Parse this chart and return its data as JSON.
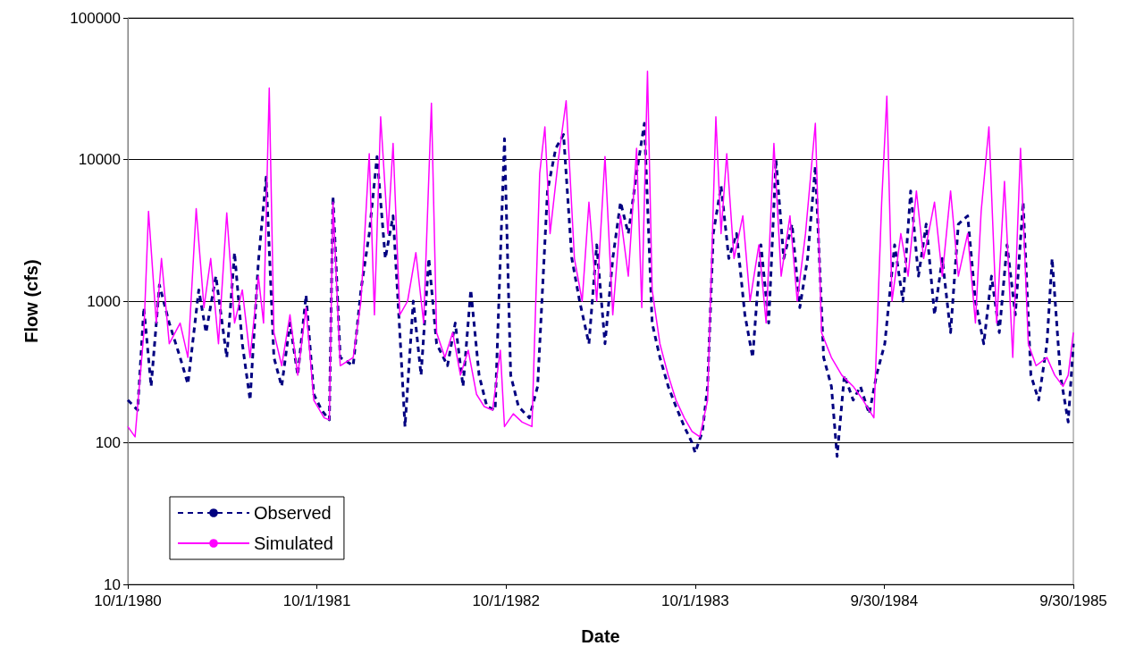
{
  "chart_data": {
    "type": "line",
    "xlabel": "Date",
    "ylabel": "Flow (cfs)",
    "log": "y",
    "grid": "y",
    "legend": "bottom left",
    "marker": "none",
    "xlim": [
      "1980-10-01",
      "1985-09-30"
    ],
    "xticks": [
      {
        "value": "1980-10-01",
        "label": "10/1/1980"
      },
      {
        "value": "1981-10-01",
        "label": "10/1/1981"
      },
      {
        "value": "1982-10-01",
        "label": "10/1/1982"
      },
      {
        "value": "1983-10-01",
        "label": "10/1/1983"
      },
      {
        "value": "1984-09-30",
        "label": "9/30/1984"
      },
      {
        "value": "1985-09-30",
        "label": "9/30/1985"
      }
    ],
    "ylim": [
      10,
      100000
    ],
    "yticks": [
      10,
      100,
      1000,
      10000,
      100000
    ],
    "series": [
      {
        "name": "Observed",
        "color": "#000080",
        "line_style": "dashed",
        "x": [
          "1980-10-01",
          "1980-10-20",
          "1980-11-01",
          "1980-11-15",
          "1980-12-01",
          "1980-12-20",
          "1981-01-10",
          "1981-01-25",
          "1981-02-15",
          "1981-03-01",
          "1981-03-20",
          "1981-04-10",
          "1981-04-25",
          "1981-05-10",
          "1981-05-25",
          "1981-06-10",
          "1981-06-25",
          "1981-07-10",
          "1981-07-25",
          "1981-08-10",
          "1981-08-25",
          "1981-09-10",
          "1981-09-25",
          "1981-10-10",
          "1981-10-25",
          "1981-11-01",
          "1981-11-15",
          "1981-12-10",
          "1981-12-25",
          "1982-01-10",
          "1982-01-25",
          "1982-02-10",
          "1982-02-25",
          "1982-03-10",
          "1982-03-20",
          "1982-04-05",
          "1982-04-20",
          "1982-05-05",
          "1982-05-20",
          "1982-06-10",
          "1982-06-25",
          "1982-07-10",
          "1982-07-25",
          "1982-08-10",
          "1982-08-25",
          "1982-09-10",
          "1982-09-20",
          "1982-09-28",
          "1982-10-10",
          "1982-10-25",
          "1982-11-15",
          "1982-12-01",
          "1982-12-20",
          "1983-01-05",
          "1983-01-20",
          "1983-02-05",
          "1983-02-20",
          "1983-03-10",
          "1983-03-25",
          "1983-04-10",
          "1983-04-25",
          "1983-05-10",
          "1983-05-25",
          "1983-06-10",
          "1983-06-25",
          "1983-07-10",
          "1983-07-25",
          "1983-08-10",
          "1983-08-25",
          "1983-09-10",
          "1983-09-25",
          "1983-10-01",
          "1983-10-15",
          "1983-10-25",
          "1983-11-05",
          "1983-11-20",
          "1983-12-05",
          "1983-12-20",
          "1984-01-05",
          "1984-01-20",
          "1984-02-05",
          "1984-02-20",
          "1984-03-05",
          "1984-03-20",
          "1984-04-05",
          "1984-04-20",
          "1984-05-05",
          "1984-05-20",
          "1984-06-05",
          "1984-06-20",
          "1984-07-01",
          "1984-07-15",
          "1984-08-01",
          "1984-08-15",
          "1984-09-01",
          "1984-09-15",
          "1984-10-01",
          "1984-10-20",
          "1984-11-05",
          "1984-11-20",
          "1984-12-05",
          "1984-12-20",
          "1985-01-05",
          "1985-01-20",
          "1985-02-05",
          "1985-02-20",
          "1985-03-10",
          "1985-03-25",
          "1985-04-10",
          "1985-04-25",
          "1985-05-10",
          "1985-05-25",
          "1985-06-10",
          "1985-06-25",
          "1985-07-10",
          "1985-07-25",
          "1985-08-10",
          "1985-08-20",
          "1985-09-05",
          "1985-09-20",
          "1985-09-30"
        ],
        "values": [
          200,
          170,
          900,
          250,
          1300,
          700,
          400,
          260,
          1200,
          600,
          1500,
          400,
          2200,
          500,
          200,
          1900,
          7500,
          400,
          250,
          700,
          300,
          1100,
          220,
          170,
          145,
          5500,
          400,
          350,
          1200,
          3000,
          10500,
          2000,
          4000,
          600,
          130,
          1000,
          300,
          2000,
          500,
          350,
          700,
          250,
          1200,
          300,
          180,
          170,
          2000,
          14000,
          300,
          180,
          150,
          250,
          6000,
          12000,
          15000,
          2000,
          1000,
          500,
          2500,
          500,
          2000,
          5000,
          3000,
          8000,
          18000,
          700,
          400,
          250,
          180,
          130,
          100,
          85,
          120,
          250,
          3000,
          6500,
          2000,
          3000,
          800,
          400,
          2500,
          700,
          10000,
          2000,
          3500,
          900,
          2000,
          9000,
          400,
          250,
          80,
          300,
          200,
          250,
          160,
          300,
          500,
          2500,
          1000,
          6000,
          1500,
          3500,
          800,
          2000,
          600,
          3500,
          4000,
          1000,
          500,
          1500,
          600,
          2500,
          800,
          5000,
          300,
          200,
          500,
          2000,
          300,
          140,
          500
        ]
      },
      {
        "name": "Simulated",
        "color": "#ff00ff",
        "line_style": "solid",
        "x": [
          "1980-10-01",
          "1980-10-15",
          "1980-11-01",
          "1980-11-10",
          "1980-11-25",
          "1980-12-05",
          "1980-12-20",
          "1981-01-10",
          "1981-01-25",
          "1981-02-10",
          "1981-02-25",
          "1981-03-10",
          "1981-03-25",
          "1981-04-10",
          "1981-04-25",
          "1981-05-10",
          "1981-05-25",
          "1981-06-10",
          "1981-06-20",
          "1981-07-01",
          "1981-07-10",
          "1981-07-25",
          "1981-08-10",
          "1981-08-25",
          "1981-09-10",
          "1981-09-25",
          "1981-10-15",
          "1981-10-25",
          "1981-11-01",
          "1981-11-15",
          "1981-12-10",
          "1981-12-25",
          "1982-01-10",
          "1982-01-20",
          "1982-02-01",
          "1982-02-15",
          "1982-02-25",
          "1982-03-10",
          "1982-03-25",
          "1982-04-10",
          "1982-04-25",
          "1982-05-10",
          "1982-05-20",
          "1982-06-05",
          "1982-06-20",
          "1982-07-05",
          "1982-07-20",
          "1982-08-05",
          "1982-08-20",
          "1982-09-05",
          "1982-09-20",
          "1982-09-28",
          "1982-10-15",
          "1982-11-01",
          "1982-11-20",
          "1982-12-05",
          "1982-12-15",
          "1982-12-25",
          "1983-01-10",
          "1983-01-25",
          "1983-02-10",
          "1983-02-25",
          "1983-03-10",
          "1983-03-25",
          "1983-04-10",
          "1983-04-25",
          "1983-05-10",
          "1983-05-25",
          "1983-06-10",
          "1983-06-20",
          "1983-07-01",
          "1983-07-10",
          "1983-07-25",
          "1983-08-10",
          "1983-08-25",
          "1983-09-10",
          "1983-09-25",
          "1983-10-10",
          "1983-10-25",
          "1983-11-10",
          "1983-11-20",
          "1983-12-01",
          "1983-12-15",
          "1984-01-01",
          "1984-01-15",
          "1984-02-01",
          "1984-02-15",
          "1984-03-01",
          "1984-03-15",
          "1984-04-01",
          "1984-04-15",
          "1984-05-01",
          "1984-05-20",
          "1984-06-01",
          "1984-06-20",
          "1984-07-10",
          "1984-08-01",
          "1984-08-20",
          "1984-09-10",
          "1984-09-25",
          "1984-10-05",
          "1984-10-15",
          "1984-11-01",
          "1984-11-15",
          "1984-12-01",
          "1984-12-15",
          "1985-01-05",
          "1985-01-20",
          "1985-02-05",
          "1985-02-20",
          "1985-03-10",
          "1985-03-25",
          "1985-04-05",
          "1985-04-20",
          "1985-05-05",
          "1985-05-20",
          "1985-06-05",
          "1985-06-20",
          "1985-07-05",
          "1985-07-20",
          "1985-08-10",
          "1985-08-25",
          "1985-09-10",
          "1985-09-20",
          "1985-09-30"
        ],
        "values": [
          130,
          110,
          600,
          4300,
          700,
          2000,
          500,
          700,
          400,
          4500,
          900,
          2000,
          500,
          4200,
          700,
          1200,
          400,
          1500,
          700,
          32000,
          600,
          350,
          800,
          300,
          900,
          200,
          150,
          145,
          5000,
          350,
          400,
          1000,
          11000,
          800,
          20000,
          3000,
          13000,
          800,
          1000,
          2200,
          700,
          25000,
          600,
          400,
          600,
          300,
          450,
          220,
          180,
          170,
          450,
          130,
          160,
          140,
          130,
          8000,
          17000,
          3000,
          10000,
          26000,
          2000,
          1000,
          5000,
          1000,
          10500,
          800,
          4000,
          1500,
          12000,
          900,
          42000,
          1200,
          500,
          300,
          200,
          150,
          120,
          110,
          200,
          20000,
          3000,
          11000,
          2000,
          4000,
          1000,
          2500,
          700,
          13000,
          1500,
          4000,
          1000,
          3000,
          18000,
          600,
          400,
          300,
          250,
          200,
          150,
          5000,
          28000,
          1000,
          3000,
          1500,
          6000,
          2000,
          5000,
          1500,
          6000,
          1500,
          3000,
          700,
          4300,
          17000,
          700,
          7000,
          400,
          12000,
          500,
          350,
          400,
          300,
          250,
          300,
          600
        ]
      }
    ]
  }
}
